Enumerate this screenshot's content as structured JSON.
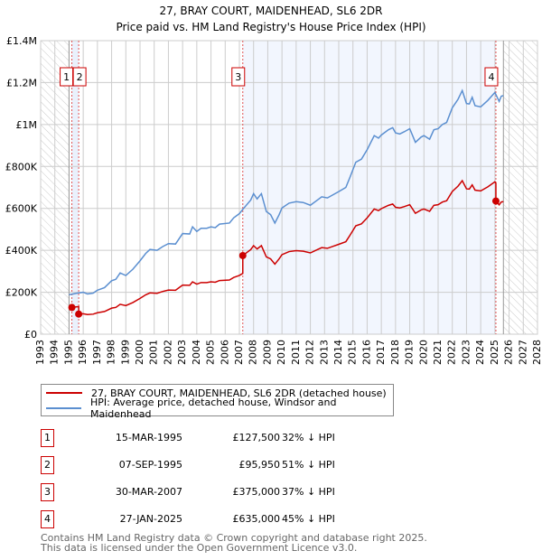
{
  "chart_data": {
    "type": "line",
    "title": "27, BRAY COURT, MAIDENHEAD, SL6 2DR",
    "subtitle": "Price paid vs. HM Land Registry's House Price Index (HPI)",
    "xlim": [
      1993,
      2028
    ],
    "ylim": [
      0,
      1400000
    ],
    "x_ticks": [
      "1993",
      "1994",
      "1995",
      "1996",
      "1997",
      "1998",
      "1999",
      "2000",
      "2001",
      "2002",
      "2003",
      "2004",
      "2005",
      "2006",
      "2007",
      "2008",
      "2009",
      "2010",
      "2011",
      "2012",
      "2013",
      "2014",
      "2015",
      "2016",
      "2017",
      "2018",
      "2019",
      "2020",
      "2021",
      "2022",
      "2023",
      "2024",
      "2025",
      "2026",
      "2027",
      "2028"
    ],
    "y_ticks": [
      {
        "value": 0,
        "label": "£0"
      },
      {
        "value": 200000,
        "label": "£200K"
      },
      {
        "value": 400000,
        "label": "£400K"
      },
      {
        "value": 600000,
        "label": "£600K"
      },
      {
        "value": 800000,
        "label": "£800K"
      },
      {
        "value": 1000000,
        "label": "£1M"
      },
      {
        "value": 1200000,
        "label": "£1.2M"
      },
      {
        "value": 1400000,
        "label": "£1.4M"
      }
    ],
    "grid": true,
    "data_range": [
      1995.0,
      2025.6
    ],
    "series": [
      {
        "name": "HPI: Average price, detached house, Windsor and Maidenhead",
        "color": "#5b8fd0",
        "x": [
          1995.0,
          1995.5,
          1996.0,
          1996.3,
          1996.7,
          1997.0,
          1997.5,
          1998.0,
          1998.3,
          1998.6,
          1999.0,
          1999.5,
          2000.0,
          2000.4,
          2000.7,
          2001.2,
          2001.6,
          2002.0,
          2002.5,
          2003.0,
          2003.5,
          2003.7,
          2004.0,
          2004.3,
          2004.7,
          2005.0,
          2005.3,
          2005.6,
          2006.3,
          2006.6,
          2007.0,
          2007.3,
          2007.8,
          2008.0,
          2008.25,
          2008.55,
          2008.9,
          2009.2,
          2009.5,
          2009.8,
          2010.0,
          2010.5,
          2011.0,
          2011.5,
          2012.0,
          2012.5,
          2012.8,
          2013.2,
          2013.6,
          2014.0,
          2014.5,
          2014.8,
          2015.2,
          2015.6,
          2016.0,
          2016.5,
          2016.8,
          2017.0,
          2017.5,
          2017.8,
          2018.0,
          2018.3,
          2018.6,
          2019.0,
          2019.4,
          2019.8,
          2020.0,
          2020.4,
          2020.7,
          2021.0,
          2021.3,
          2021.6,
          2022.0,
          2022.4,
          2022.7,
          2023.0,
          2023.2,
          2023.4,
          2023.6,
          2024.0,
          2024.5,
          2025.0,
          2025.3,
          2025.45,
          2025.6
        ],
        "y": [
          188000,
          195000,
          200000,
          192000,
          196000,
          210000,
          222000,
          255000,
          262000,
          292000,
          280000,
          310000,
          350000,
          385000,
          404000,
          400000,
          418000,
          432000,
          430000,
          480000,
          478000,
          512000,
          490000,
          505000,
          505000,
          512000,
          508000,
          525000,
          530000,
          555000,
          575000,
          600000,
          640000,
          670000,
          645000,
          670000,
          585000,
          570000,
          530000,
          570000,
          602000,
          625000,
          632000,
          628000,
          615000,
          640000,
          655000,
          650000,
          665000,
          680000,
          700000,
          750000,
          820000,
          835000,
          880000,
          947000,
          935000,
          950000,
          975000,
          985000,
          960000,
          955000,
          965000,
          980000,
          915000,
          940000,
          947000,
          930000,
          975000,
          980000,
          1000000,
          1010000,
          1080000,
          1120000,
          1162000,
          1100000,
          1098000,
          1130000,
          1090000,
          1084000,
          1115000,
          1153000,
          1110000,
          1135000,
          1138000
        ]
      },
      {
        "name": "27, BRAY COURT, MAIDENHEAD, SL6 2DR (detached house)",
        "color": "#cc0000"
      }
    ],
    "sales": [
      {
        "n": "1",
        "x": 1995.2,
        "price": 127500
      },
      {
        "n": "2",
        "x": 1995.68,
        "price": 95950
      },
      {
        "n": "3",
        "x": 2007.24,
        "price": 375000
      },
      {
        "n": "4",
        "x": 2025.07,
        "price": 635000
      }
    ]
  },
  "legend": {
    "property": "27, BRAY COURT, MAIDENHEAD, SL6 2DR (detached house)",
    "hpi": "HPI: Average price, detached house, Windsor and Maidenhead"
  },
  "table": [
    {
      "n": "1",
      "date": "15-MAR-1995",
      "price": "£127,500",
      "hpi": "32% ↓ HPI"
    },
    {
      "n": "2",
      "date": "07-SEP-1995",
      "price": "£95,950",
      "hpi": "51% ↓ HPI"
    },
    {
      "n": "3",
      "date": "30-MAR-2007",
      "price": "£375,000",
      "hpi": "37% ↓ HPI"
    },
    {
      "n": "4",
      "date": "27-JAN-2025",
      "price": "£635,000",
      "hpi": "45% ↓ HPI"
    }
  ],
  "footer": {
    "line1": "Contains HM Land Registry data © Crown copyright and database right 2025.",
    "line2": "This data is licensed under the Open Government Licence v3.0."
  }
}
